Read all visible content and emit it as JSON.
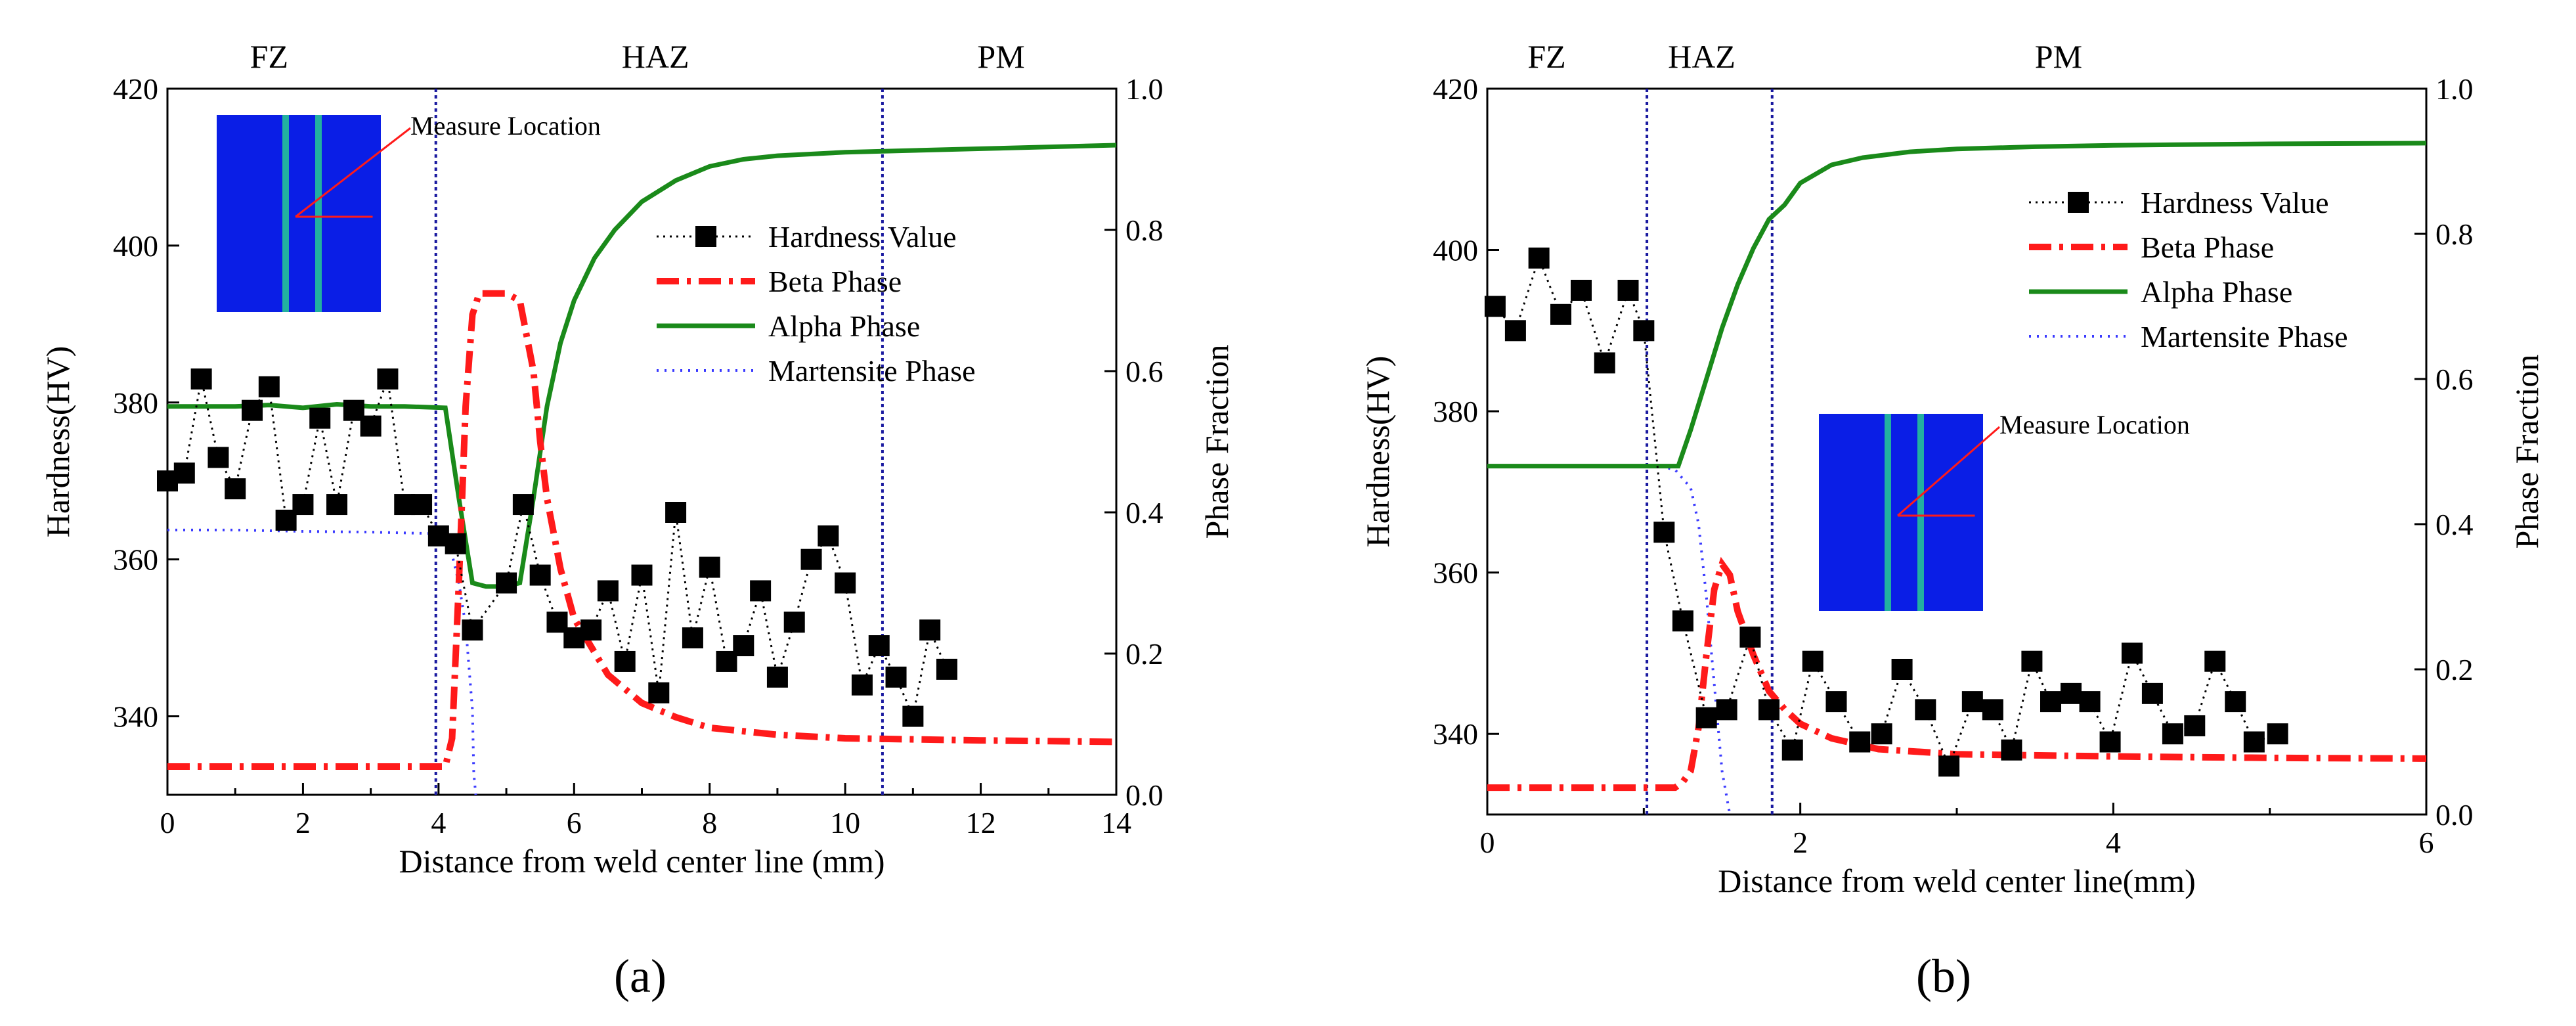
{
  "figure": {
    "panel_labels": [
      "(a)",
      "(b)"
    ]
  },
  "colors": {
    "hardness": "#000000",
    "beta": "#ff1a1a",
    "alpha": "#1a8a1a",
    "martensite": "#3a3aff",
    "zone_line": "#1a1aa0",
    "inset_fill": "#0a1ee6",
    "inset_stripe": "#22b0a0"
  },
  "chart_data": [
    {
      "type": "line",
      "panel": "(a)",
      "xlabel": "Distance from weld center line (mm)",
      "ylabel": "Hardness(HV)",
      "y2label": "Phase Fraction",
      "xlim": [
        0,
        14
      ],
      "ylim": [
        330,
        420
      ],
      "y2lim": [
        0,
        1
      ],
      "xticks": [
        "0",
        "2",
        "4",
        "6",
        "8",
        "10",
        "12",
        "14"
      ],
      "yticks": [
        "340",
        "360",
        "380",
        "400",
        "420"
      ],
      "y2ticks": [
        "0.0",
        "0.2",
        "0.4",
        "0.6",
        "0.8",
        "1.0"
      ],
      "zones": [
        {
          "label": "FZ",
          "x": 1.5
        },
        {
          "label": "HAZ",
          "x": 7.2
        },
        {
          "label": "PM",
          "x": 12.3
        }
      ],
      "boundaries": [
        3.96,
        10.55
      ],
      "inset": {
        "label": "Measure Location"
      },
      "legend": [
        "Hardness Value",
        "Beta Phase",
        "Alpha Phase",
        "Martensite Phase"
      ],
      "series": [
        {
          "name": "Hardness Value",
          "axis": "left",
          "x": [
            0.0,
            0.25,
            0.5,
            0.75,
            1.0,
            1.25,
            1.5,
            1.75,
            2.0,
            2.25,
            2.5,
            2.75,
            3.0,
            3.25,
            3.5,
            3.75,
            4.0,
            4.25,
            4.5,
            5.0,
            5.25,
            5.5,
            5.75,
            6.0,
            6.25,
            6.5,
            6.75,
            7.0,
            7.25,
            7.5,
            7.75,
            8.0,
            8.25,
            8.5,
            8.75,
            9.0,
            9.25,
            9.5,
            9.75,
            10.0,
            10.25,
            10.5,
            10.75,
            11.0,
            11.25,
            11.5
          ],
          "y": [
            370,
            371,
            383,
            373,
            369,
            379,
            382,
            365,
            367,
            378,
            367,
            379,
            377,
            383,
            367,
            367,
            363,
            362,
            351,
            357,
            367,
            358,
            352,
            350,
            351,
            356,
            347,
            358,
            343,
            366,
            350,
            359,
            347,
            349,
            356,
            345,
            352,
            360,
            363,
            357,
            344,
            349,
            345,
            340,
            351,
            346
          ]
        },
        {
          "name": "Beta Phase",
          "axis": "right",
          "x": [
            0,
            3.9,
            4.1,
            4.2,
            4.3,
            4.4,
            4.5,
            4.6,
            4.8,
            5.0,
            5.2,
            5.4,
            5.5,
            5.6,
            5.8,
            6.0,
            6.5,
            7.0,
            7.5,
            8.0,
            9,
            10,
            12,
            14
          ],
          "y": [
            0.04,
            0.04,
            0.04,
            0.08,
            0.3,
            0.55,
            0.68,
            0.71,
            0.71,
            0.71,
            0.7,
            0.6,
            0.5,
            0.42,
            0.32,
            0.25,
            0.17,
            0.13,
            0.11,
            0.095,
            0.085,
            0.08,
            0.077,
            0.075
          ]
        },
        {
          "name": "Alpha Phase",
          "axis": "right",
          "x": [
            0,
            0.5,
            1,
            1.5,
            2,
            2.5,
            3,
            3.5,
            4.1,
            4.3,
            4.5,
            4.7,
            5.0,
            5.2,
            5.4,
            5.6,
            5.8,
            6.0,
            6.3,
            6.6,
            7,
            7.5,
            8,
            8.5,
            9,
            10,
            12,
            14
          ],
          "y": [
            0.55,
            0.55,
            0.55,
            0.552,
            0.548,
            0.553,
            0.55,
            0.55,
            0.548,
            0.42,
            0.3,
            0.295,
            0.295,
            0.3,
            0.42,
            0.55,
            0.64,
            0.7,
            0.76,
            0.8,
            0.84,
            0.87,
            0.89,
            0.9,
            0.905,
            0.91,
            0.915,
            0.92
          ]
        },
        {
          "name": "Martensite Phase",
          "axis": "right",
          "x": [
            0,
            1,
            2,
            3,
            3.9,
            4.1,
            4.2,
            4.3,
            4.4,
            4.5,
            4.52,
            4.55
          ],
          "y": [
            0.375,
            0.375,
            0.373,
            0.372,
            0.37,
            0.36,
            0.34,
            0.3,
            0.24,
            0.12,
            0.03,
            0.0
          ]
        }
      ]
    },
    {
      "type": "line",
      "panel": "(b)",
      "xlabel": "Distance from weld center line(mm)",
      "ylabel": "Hardness(HV)",
      "y2label": "Phase Fraction",
      "xlim": [
        0,
        6
      ],
      "ylim": [
        330,
        420
      ],
      "y2lim": [
        0,
        1
      ],
      "xticks": [
        "0",
        "2",
        "4",
        "6"
      ],
      "yticks": [
        "340",
        "360",
        "380",
        "400",
        "420"
      ],
      "y2ticks": [
        "0.0",
        "0.2",
        "0.4",
        "0.6",
        "0.8",
        "1.0"
      ],
      "zones": [
        {
          "label": "FZ",
          "x": 0.38
        },
        {
          "label": "HAZ",
          "x": 1.37
        },
        {
          "label": "PM",
          "x": 3.65
        }
      ],
      "boundaries": [
        1.02,
        1.82
      ],
      "inset": {
        "label": "Measure Location"
      },
      "legend": [
        "Hardness Value",
        "Beta Phase",
        "Alpha Phase",
        "Martensite Phase"
      ],
      "series": [
        {
          "name": "Hardness Value",
          "axis": "left",
          "x": [
            0.05,
            0.18,
            0.33,
            0.47,
            0.6,
            0.75,
            0.9,
            1.0,
            1.13,
            1.25,
            1.4,
            1.53,
            1.68,
            1.8,
            1.95,
            2.08,
            2.23,
            2.38,
            2.52,
            2.65,
            2.8,
            2.95,
            3.1,
            3.23,
            3.35,
            3.48,
            3.6,
            3.73,
            3.85,
            3.98,
            4.12,
            4.25,
            4.38,
            4.52,
            4.65,
            4.78,
            4.9,
            5.05
          ],
          "y": [
            393,
            390,
            399,
            392,
            395,
            386,
            395,
            390,
            365,
            354,
            342,
            343,
            352,
            343,
            338,
            349,
            344,
            339,
            340,
            348,
            343,
            336,
            344,
            343,
            338,
            349,
            344,
            345,
            344,
            339,
            350,
            345,
            340,
            341,
            349,
            344,
            339,
            340
          ]
        },
        {
          "name": "Beta Phase",
          "axis": "right",
          "x": [
            0,
            1.2,
            1.25,
            1.3,
            1.35,
            1.4,
            1.45,
            1.5,
            1.55,
            1.6,
            1.7,
            1.8,
            1.9,
            2.0,
            2.2,
            2.5,
            3,
            4,
            5,
            6
          ],
          "y": [
            0.037,
            0.037,
            0.045,
            0.06,
            0.12,
            0.22,
            0.31,
            0.345,
            0.33,
            0.28,
            0.22,
            0.17,
            0.145,
            0.125,
            0.105,
            0.09,
            0.083,
            0.08,
            0.078,
            0.077
          ]
        },
        {
          "name": "Alpha Phase",
          "axis": "right",
          "x": [
            0,
            0.5,
            1.0,
            1.22,
            1.3,
            1.4,
            1.5,
            1.6,
            1.7,
            1.8,
            1.9,
            2.0,
            2.2,
            2.4,
            2.7,
            3,
            3.5,
            4,
            5,
            6
          ],
          "y": [
            0.48,
            0.48,
            0.48,
            0.48,
            0.53,
            0.6,
            0.67,
            0.73,
            0.78,
            0.82,
            0.84,
            0.87,
            0.895,
            0.905,
            0.913,
            0.917,
            0.92,
            0.922,
            0.924,
            0.925
          ]
        },
        {
          "name": "Martensite Phase",
          "axis": "right",
          "x": [
            0,
            0.5,
            1.0,
            1.1,
            1.2,
            1.3,
            1.35,
            1.4,
            1.45,
            1.5,
            1.55
          ],
          "y": [
            0.48,
            0.48,
            0.48,
            0.48,
            0.475,
            0.45,
            0.4,
            0.3,
            0.18,
            0.06,
            0.0
          ]
        }
      ]
    }
  ]
}
